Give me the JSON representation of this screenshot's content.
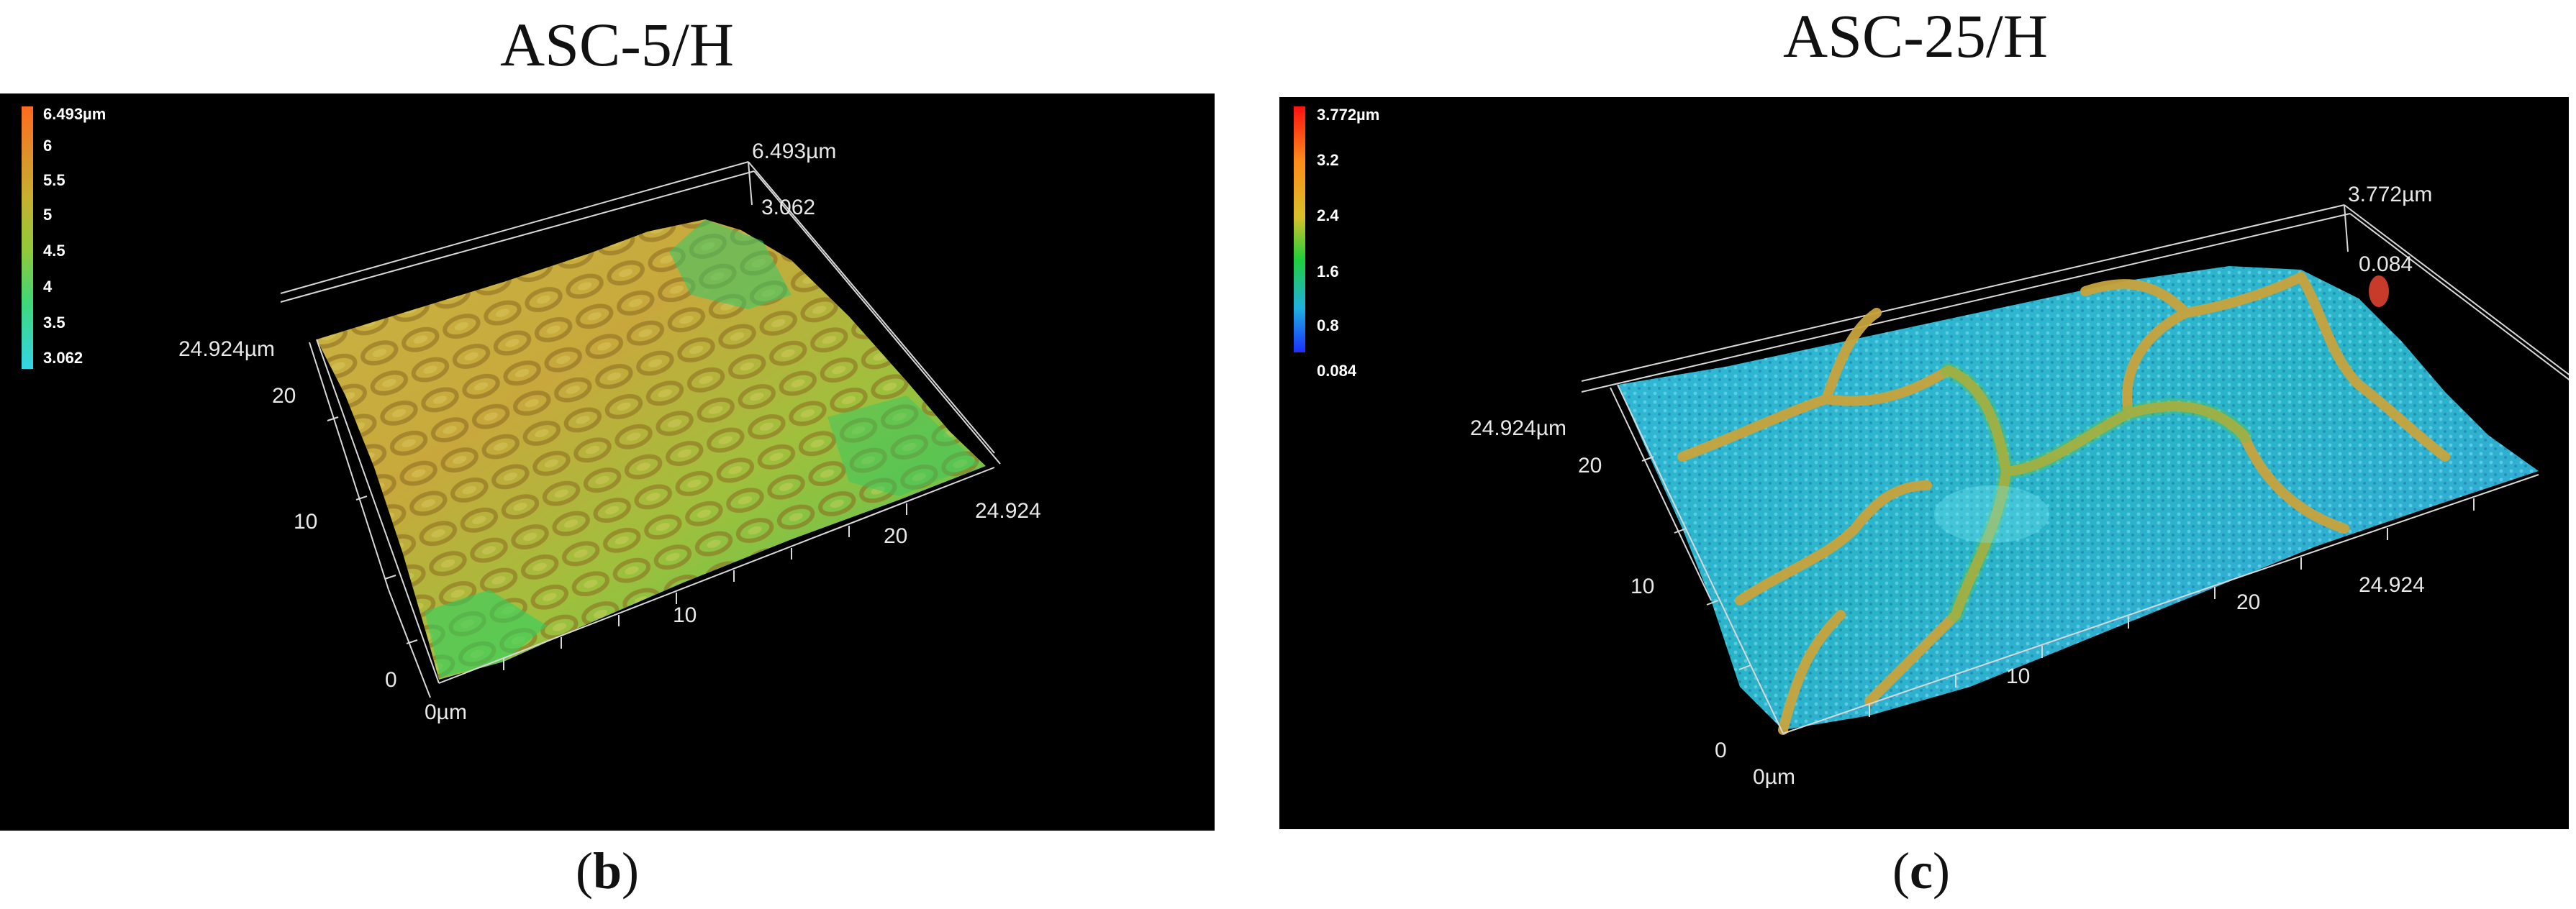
{
  "panels": [
    {
      "title": "ASC-5/H",
      "label": "b",
      "colorbar": {
        "ticks": [
          "6.493µm",
          "6",
          "5.5",
          "5",
          "4.5",
          "4",
          "3.5",
          "3.062"
        ],
        "colors": [
          "#ff7a2a",
          "#e38a2c",
          "#c8a031",
          "#b3b832",
          "#8fc43a",
          "#4fd24e",
          "#3ad7a2",
          "#38d4e0"
        ]
      },
      "axes": {
        "z_max_label": "6.493µm",
        "z_min_label": "3.062",
        "y_max_label": "24.924µm",
        "y_ticks": [
          "20",
          "10",
          "0"
        ],
        "x_origin_label": "0µm",
        "x_ticks": [
          "10",
          "20"
        ],
        "x_max_label": "24.924"
      }
    },
    {
      "title": "ASC-25/H",
      "label": "c",
      "colorbar": {
        "ticks": [
          "3.772µm",
          "3.2",
          "2.4",
          "1.6",
          "0.8",
          "0.084"
        ],
        "colors": [
          "#ff1a1a",
          "#ff8c1a",
          "#d7c02a",
          "#2ad03a",
          "#20b8d8",
          "#1a3cff"
        ]
      },
      "axes": {
        "z_max_label": "3.772µm",
        "z_min_label": "0.084",
        "y_max_label": "24.924µm",
        "y_ticks": [
          "20",
          "10",
          "0"
        ],
        "x_origin_label": "0µm",
        "x_ticks": [
          "10",
          "20"
        ],
        "x_max_label": "24.924"
      }
    }
  ],
  "chart_data": [
    {
      "type": "heatmap",
      "title": "ASC-5/H",
      "description_units": "µm",
      "z_range": [
        3.062,
        6.493
      ],
      "x_range": [
        0,
        24.924
      ],
      "y_range": [
        0,
        24.924
      ],
      "colorbar_ticks": [
        6.493,
        6,
        5.5,
        5,
        4.5,
        4,
        3.5,
        3.062
      ]
    },
    {
      "type": "heatmap",
      "title": "ASC-25/H",
      "description_units": "µm",
      "z_range": [
        0.084,
        3.772
      ],
      "x_range": [
        0,
        24.924
      ],
      "y_range": [
        0,
        24.924
      ],
      "colorbar_ticks": [
        3.772,
        3.2,
        2.4,
        1.6,
        0.8,
        0.084
      ]
    }
  ]
}
